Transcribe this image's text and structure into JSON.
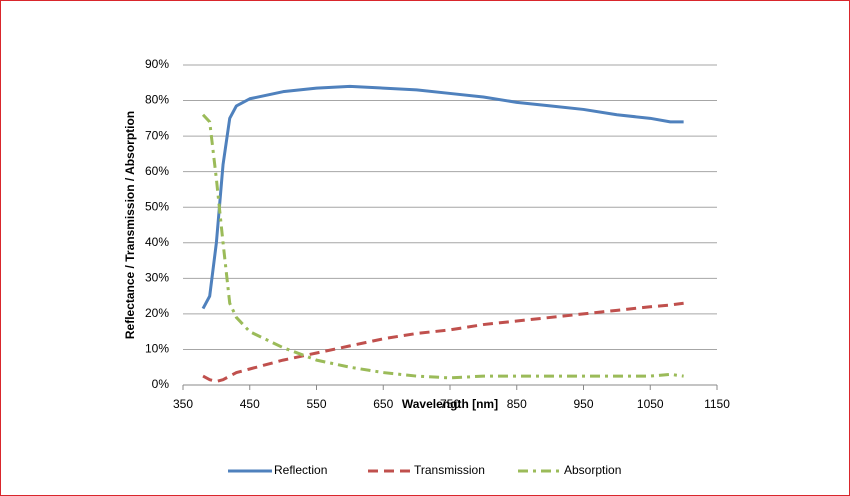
{
  "chart_data": {
    "type": "line",
    "xlabel": "Wavelength [nm]",
    "ylabel": "Reflectance / Transmission / Absorption",
    "x": [
      380,
      390,
      400,
      410,
      420,
      430,
      450,
      500,
      550,
      600,
      650,
      700,
      750,
      800,
      850,
      900,
      950,
      1000,
      1050,
      1080,
      1100
    ],
    "series": [
      {
        "name": "Reflection",
        "color": "#4f81bd",
        "style": "solid",
        "values": [
          21.5,
          25,
          40,
          62,
          75,
          78.5,
          80.5,
          82.5,
          83.5,
          84,
          83.5,
          83,
          82,
          81,
          79.5,
          78.5,
          77.5,
          76,
          75,
          74,
          74
        ]
      },
      {
        "name": "Transmission",
        "color": "#c0504d",
        "style": "dashed",
        "values": [
          2.5,
          1.5,
          1,
          1.5,
          2.5,
          3.5,
          4.5,
          7,
          9,
          11,
          13,
          14.5,
          15.5,
          17,
          18,
          19,
          20,
          21,
          22,
          22.5,
          23
        ]
      },
      {
        "name": "Absorption",
        "color": "#9bbb59",
        "style": "dashdot",
        "values": [
          76,
          74,
          58,
          40,
          23,
          19,
          15,
          10.5,
          7,
          5,
          3.5,
          2.5,
          2,
          2.5,
          2.5,
          2.5,
          2.5,
          2.5,
          2.5,
          3,
          2.5
        ]
      }
    ],
    "xlim": [
      350,
      1150
    ],
    "xticks": [
      350,
      450,
      550,
      650,
      750,
      850,
      950,
      1050,
      1150
    ],
    "ylim": [
      0,
      90
    ],
    "yticks": [
      {
        "value": 0,
        "label": "0%"
      },
      {
        "value": 10,
        "label": "10%"
      },
      {
        "value": 20,
        "label": "20%"
      },
      {
        "value": 30,
        "label": "30%"
      },
      {
        "value": 40,
        "label": "40%"
      },
      {
        "value": 50,
        "label": "50%"
      },
      {
        "value": 60,
        "label": "60%"
      },
      {
        "value": 70,
        "label": "70%"
      },
      {
        "value": 80,
        "label": "80%"
      },
      {
        "value": 90,
        "label": "90%"
      }
    ],
    "grid": true,
    "legend": "bottom"
  }
}
